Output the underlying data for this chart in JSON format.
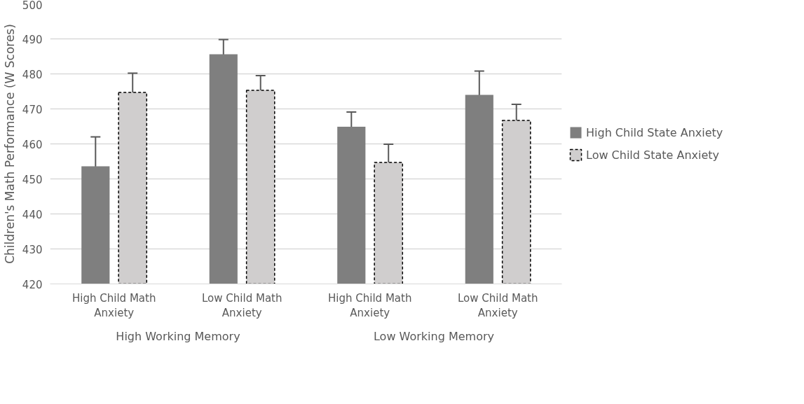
{
  "chart_data": {
    "type": "bar",
    "ylabel": "Children's Math Performance (W Scores)",
    "categories": [
      "High Child Math Anxiety",
      "Low Child Math Anxiety",
      "High Child Math Anxiety",
      "Low Child Math Anxiety"
    ],
    "series": [
      {
        "name": "High Child State Anxiety",
        "color": "#7f7f7f",
        "values": [
          453.6,
          485.6,
          464.9,
          474.0
        ],
        "errors": [
          8.4,
          4.2,
          4.2,
          6.8
        ]
      },
      {
        "name": "Low Child State Anxiety",
        "color": "#d0cece",
        "line_style": "dashed",
        "values": [
          474.7,
          475.3,
          454.7,
          466.7
        ],
        "errors": [
          5.5,
          4.2,
          5.2,
          4.6
        ]
      }
    ],
    "annotations": [
      "High Working Memory",
      "Low Working Memory"
    ],
    "ylim": [
      420,
      500
    ],
    "yticks": [
      420,
      430,
      440,
      450,
      460,
      470,
      480,
      490,
      500
    ],
    "grid": "y",
    "legend": "right"
  }
}
